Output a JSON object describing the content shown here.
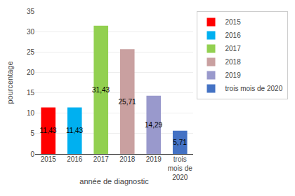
{
  "chart_data": {
    "type": "bar",
    "categories": [
      "2015",
      "2016",
      "2017",
      "2018",
      "2019",
      "trois\nmois de\n2020"
    ],
    "series": [
      {
        "name": "2015",
        "color": "#ff0000",
        "values": [
          11.43,
          null,
          null,
          null,
          null,
          null
        ],
        "value_labels": [
          "11,43",
          null,
          null,
          null,
          null,
          null
        ]
      },
      {
        "name": "2016",
        "color": "#00b0f0",
        "values": [
          null,
          11.43,
          null,
          null,
          null,
          null
        ],
        "value_labels": [
          null,
          "11,43",
          null,
          null,
          null,
          null
        ]
      },
      {
        "name": "2017",
        "color": "#92d050",
        "values": [
          null,
          null,
          31.43,
          null,
          null,
          null
        ],
        "value_labels": [
          null,
          null,
          "31,43",
          null,
          null,
          null
        ]
      },
      {
        "name": "2018",
        "color": "#c9a0a0",
        "values": [
          null,
          null,
          null,
          25.71,
          null,
          null
        ],
        "value_labels": [
          null,
          null,
          null,
          "25,71",
          null,
          null
        ]
      },
      {
        "name": "2019",
        "color": "#9999cc",
        "values": [
          null,
          null,
          null,
          null,
          14.29,
          null
        ],
        "value_labels": [
          null,
          null,
          null,
          null,
          "14,29",
          null
        ]
      },
      {
        "name": "trois mois de 2020",
        "color": "#4472c4",
        "values": [
          null,
          null,
          null,
          null,
          null,
          5.71
        ],
        "value_labels": [
          null,
          null,
          null,
          null,
          null,
          "5,71"
        ]
      }
    ],
    "xlabel": "année de diagnostic",
    "ylabel": "pourcentage",
    "ylim": [
      0,
      35
    ],
    "yticks": [
      0,
      5,
      10,
      15,
      20,
      25,
      30,
      35
    ],
    "grid": true,
    "legend": "right",
    "data_labels": true
  }
}
